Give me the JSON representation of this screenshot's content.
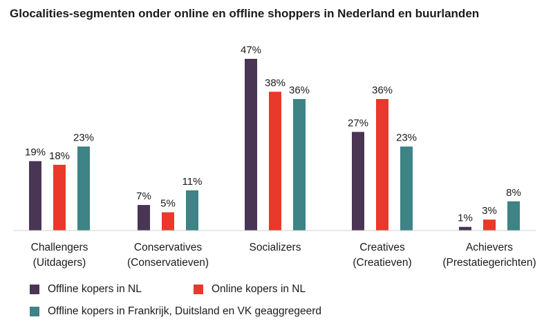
{
  "chart_data": {
    "type": "bar",
    "title": "Glocalities-segmenten onder online en offline shoppers in Nederland en buurlanden",
    "categories": [
      [
        "Challengers",
        "(Uitdagers)"
      ],
      [
        "Conservatives",
        "(Conservatieven)"
      ],
      [
        "Socializers",
        ""
      ],
      [
        "Creatives",
        "(Creatieven)"
      ],
      [
        "Achievers",
        "(Prestatiegerichten)"
      ]
    ],
    "series": [
      {
        "name": "Offline kopers in NL",
        "color": "#4a3555",
        "values": [
          19,
          7,
          47,
          27,
          1
        ]
      },
      {
        "name": "Online kopers in NL",
        "color": "#e8392c",
        "values": [
          18,
          5,
          38,
          36,
          3
        ]
      },
      {
        "name": "Offline kopers in Frankrijk, Duitsland en VK geaggregeerd",
        "color": "#3e8385",
        "values": [
          23,
          11,
          36,
          23,
          8
        ]
      }
    ],
    "value_suffix": "%",
    "ylim": [
      0,
      50
    ],
    "grid": false,
    "legend_position": "bottom"
  }
}
